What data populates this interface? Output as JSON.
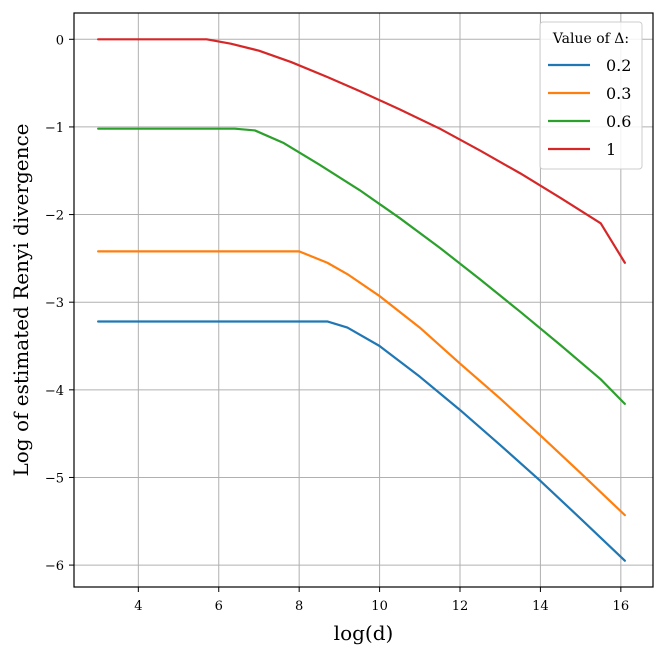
{
  "chart_data": {
    "type": "line",
    "title": "",
    "xlabel": "log(d)",
    "ylabel": "Log of estimated Renyi divergence",
    "xlim": [
      2.4,
      16.8
    ],
    "ylim": [
      -6.25,
      0.3
    ],
    "xticks": [
      4,
      6,
      8,
      10,
      12,
      14,
      16
    ],
    "yticks": [
      0,
      -1,
      -2,
      -3,
      -4,
      -5,
      -6
    ],
    "xtick_labels": [
      "4",
      "6",
      "8",
      "10",
      "12",
      "14",
      "16"
    ],
    "ytick_labels": [
      "0",
      "−1",
      "−2",
      "−3",
      "−4",
      "−5",
      "−6"
    ],
    "grid": true,
    "legend": {
      "title": "Value of Δ:",
      "position": "top-right"
    },
    "series": [
      {
        "name": "0.2",
        "color": "#1f77b4",
        "x": [
          3,
          4,
          5,
          6,
          7,
          8,
          8.7,
          9.2,
          10,
          11,
          12,
          13,
          14,
          15,
          16.1
        ],
        "y": [
          -3.22,
          -3.22,
          -3.22,
          -3.22,
          -3.22,
          -3.22,
          -3.22,
          -3.29,
          -3.5,
          -3.85,
          -4.23,
          -4.63,
          -5.04,
          -5.47,
          -5.95
        ]
      },
      {
        "name": "0.3",
        "color": "#ff7f0e",
        "x": [
          3,
          4,
          5,
          6,
          7,
          8,
          8.7,
          9.2,
          10,
          11,
          12,
          13,
          14,
          15,
          16.1
        ],
        "y": [
          -2.42,
          -2.42,
          -2.42,
          -2.42,
          -2.42,
          -2.42,
          -2.55,
          -2.68,
          -2.93,
          -3.29,
          -3.7,
          -4.1,
          -4.52,
          -4.95,
          -5.43
        ]
      },
      {
        "name": "0.6",
        "color": "#2ca02c",
        "x": [
          3,
          4,
          5,
          6,
          6.4,
          6.9,
          7.6,
          8.5,
          9.5,
          10.5,
          11.5,
          12.5,
          13.5,
          14.5,
          15.5,
          16.1
        ],
        "y": [
          -1.02,
          -1.02,
          -1.02,
          -1.02,
          -1.02,
          -1.04,
          -1.18,
          -1.43,
          -1.72,
          -2.04,
          -2.38,
          -2.74,
          -3.11,
          -3.49,
          -3.88,
          -4.16
        ]
      },
      {
        "name": "1",
        "color": "#d62728",
        "x": [
          3,
          4,
          5,
          5.7,
          6.3,
          7,
          7.8,
          8.7,
          9.5,
          10.5,
          11.5,
          12.5,
          13.5,
          14.5,
          15.5,
          16.1
        ],
        "y": [
          0.0,
          0.0,
          0.0,
          0.0,
          -0.05,
          -0.13,
          -0.26,
          -0.43,
          -0.59,
          -0.8,
          -1.02,
          -1.27,
          -1.53,
          -1.81,
          -2.1,
          -2.55
        ]
      }
    ]
  }
}
